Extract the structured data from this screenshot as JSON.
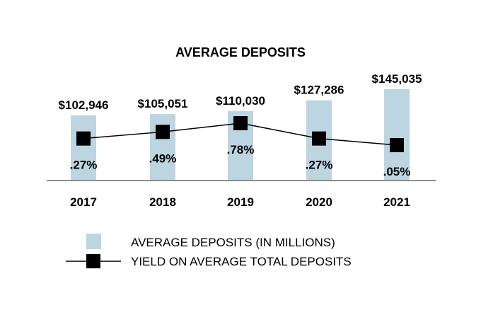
{
  "chart_data": {
    "type": "bar",
    "title": "AVERAGE DEPOSITS",
    "categories": [
      "2017",
      "2018",
      "2019",
      "2020",
      "2021"
    ],
    "series": [
      {
        "name": "AVERAGE DEPOSITS (IN MILLIONS)",
        "kind": "bar",
        "values": [
          102946,
          105051,
          110030,
          127286,
          145035
        ],
        "labels": [
          "$102,946",
          "$105,051",
          "$110,030",
          "$127,286",
          "$145,035"
        ]
      },
      {
        "name": "YIELD ON AVERAGE TOTAL DEPOSITS",
        "kind": "line",
        "values": [
          0.27,
          0.49,
          0.78,
          0.27,
          0.05
        ],
        "labels": [
          ".27%",
          ".49%",
          ".78%",
          ".27%",
          ".05%"
        ]
      }
    ],
    "legend": "bottom",
    "colors": {
      "bar": "#bcd5e1",
      "line": "#000000",
      "axis": "#8c8c8c"
    }
  }
}
